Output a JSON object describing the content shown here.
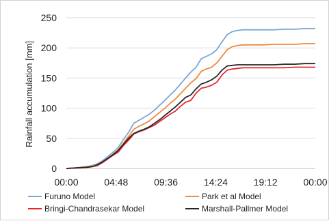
{
  "chart_data": {
    "type": "line",
    "title": "",
    "xlabel": "",
    "ylabel": "Rainfall accumulation [mm]",
    "ylim": [
      0,
      250
    ],
    "yticks": [
      0,
      50,
      100,
      150,
      200,
      250
    ],
    "xlim": [
      0,
      1440
    ],
    "xtick_labels": [
      "00:00",
      "04:48",
      "09:36",
      "14:24",
      "19:12",
      "00:00"
    ],
    "xticks": [
      0,
      288,
      576,
      864,
      1152,
      1440
    ],
    "grid": "horizontal",
    "legend_position": "bottom",
    "series": [
      {
        "name": "Furuno Model",
        "color": "#7ba6d6",
        "x": [
          0,
          60,
          120,
          150,
          180,
          210,
          240,
          270,
          300,
          330,
          360,
          390,
          420,
          450,
          480,
          510,
          540,
          570,
          600,
          630,
          660,
          690,
          720,
          750,
          780,
          810,
          840,
          870,
          900,
          930,
          960,
          990,
          1020,
          1050,
          1080,
          1110,
          1140,
          1200,
          1260,
          1320,
          1380,
          1440
        ],
        "y": [
          0,
          1,
          3,
          5,
          8,
          13,
          20,
          27,
          35,
          48,
          60,
          75,
          80,
          85,
          90,
          97,
          105,
          113,
          122,
          130,
          140,
          150,
          160,
          168,
          182,
          186,
          190,
          197,
          210,
          222,
          227,
          229,
          230,
          230,
          230,
          230,
          230,
          230,
          231,
          231,
          232,
          232
        ]
      },
      {
        "name": "Park et al Model",
        "color": "#ed8a3c",
        "x": [
          0,
          60,
          120,
          150,
          180,
          210,
          240,
          270,
          300,
          330,
          360,
          390,
          420,
          450,
          480,
          510,
          540,
          570,
          600,
          630,
          660,
          690,
          720,
          750,
          780,
          810,
          840,
          870,
          900,
          930,
          960,
          990,
          1020,
          1050,
          1080,
          1110,
          1140,
          1200,
          1260,
          1320,
          1380,
          1440
        ],
        "y": [
          0,
          1,
          3,
          4,
          7,
          11,
          17,
          24,
          31,
          42,
          53,
          65,
          70,
          74,
          79,
          86,
          93,
          100,
          108,
          115,
          124,
          133,
          142,
          149,
          161,
          165,
          168,
          175,
          186,
          197,
          202,
          204,
          205,
          205,
          205,
          205,
          205,
          206,
          206,
          206,
          207,
          207
        ]
      },
      {
        "name": "Bringi-Chandrasekar Model",
        "color": "#e8252a",
        "x": [
          0,
          60,
          120,
          150,
          180,
          210,
          240,
          270,
          300,
          330,
          360,
          390,
          420,
          450,
          480,
          510,
          540,
          570,
          600,
          630,
          660,
          690,
          720,
          750,
          780,
          810,
          840,
          870,
          900,
          930,
          960,
          990,
          1020,
          1050,
          1080,
          1110,
          1140,
          1200,
          1260,
          1320,
          1380,
          1440
        ],
        "y": [
          0,
          1,
          2,
          3,
          5,
          10,
          16,
          22,
          27,
          38,
          47,
          57,
          61,
          64,
          68,
          72,
          78,
          84,
          90,
          95,
          103,
          110,
          113,
          125,
          133,
          135,
          138,
          143,
          155,
          163,
          165,
          166,
          167,
          167,
          167,
          167,
          167,
          167,
          167,
          168,
          168,
          168
        ]
      },
      {
        "name": "Marshall-Pallmer Model",
        "color": "#262626",
        "x": [
          0,
          60,
          120,
          150,
          180,
          210,
          240,
          270,
          300,
          330,
          360,
          390,
          420,
          450,
          480,
          510,
          540,
          570,
          600,
          630,
          660,
          690,
          720,
          750,
          780,
          810,
          840,
          870,
          900,
          930,
          960,
          990,
          1020,
          1050,
          1080,
          1110,
          1140,
          1200,
          1260,
          1320,
          1380,
          1440
        ],
        "y": [
          0,
          1,
          2,
          3,
          6,
          11,
          17,
          23,
          30,
          40,
          50,
          58,
          62,
          65,
          69,
          75,
          81,
          88,
          95,
          102,
          110,
          118,
          122,
          132,
          140,
          143,
          147,
          153,
          163,
          170,
          171,
          172,
          172,
          172,
          172,
          172,
          172,
          172,
          173,
          173,
          174,
          174
        ]
      }
    ]
  }
}
